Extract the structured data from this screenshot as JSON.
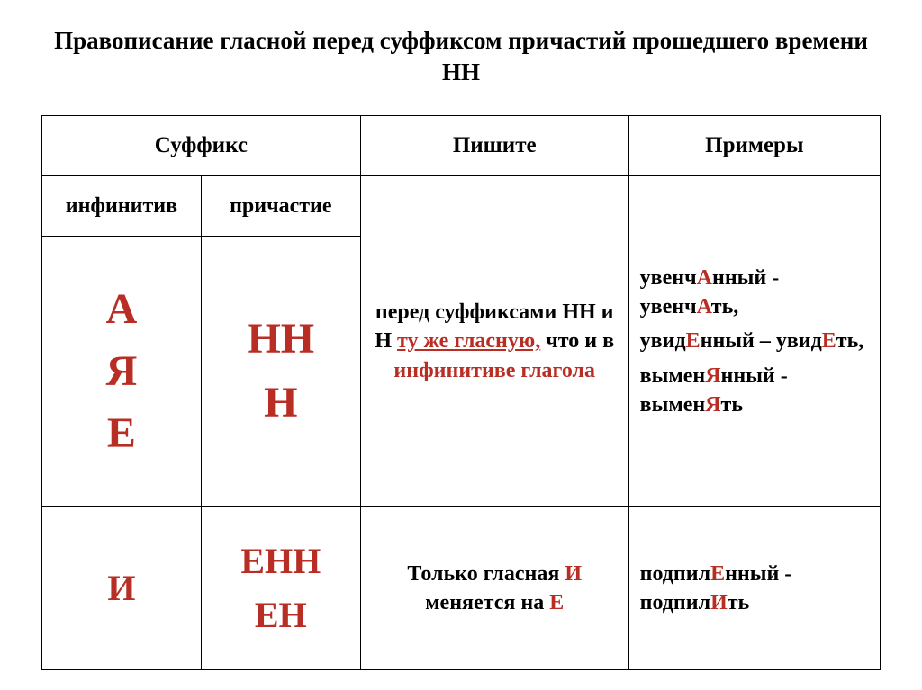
{
  "title": "Правописание гласной перед суффиксом причастий прошедшего времени НН",
  "headers": {
    "suffix": "Суффикс",
    "write": "Пишите",
    "examples": "Примеры",
    "infinitive": "инфинитив",
    "participle": "причастие"
  },
  "row1": {
    "infin_letters": [
      "А",
      "Я",
      "Е"
    ],
    "part_suffixes": [
      "НН",
      "Н"
    ],
    "rule_pre": "перед суффиксами НН и Н ",
    "rule_link": "ту же гласную,",
    "rule_mid": " что и в ",
    "rule_bold": "инфинитиве глагола",
    "ex1_a": "увенч",
    "ex1_hl1": "А",
    "ex1_b": "нный - увенч",
    "ex1_hl2": "А",
    "ex1_c": "ть,",
    "ex2_a": "увид",
    "ex2_hl1": "Е",
    "ex2_b": "нный – увид",
    "ex2_hl2": "Е",
    "ex2_c": "ть,",
    "ex3_a": "вымен",
    "ex3_hl1": "Я",
    "ex3_b": "нный - вымен",
    "ex3_hl2": "Я",
    "ex3_c": "ть"
  },
  "row2": {
    "infin_letters": [
      "И"
    ],
    "part_suffixes": [
      "ЕНН",
      "ЕН"
    ],
    "rule_pre": "Только гласная ",
    "rule_hl1": "И",
    "rule_mid": " меняется на ",
    "rule_hl2": "Е",
    "ex_a": "подпил",
    "ex_hl1": "Е",
    "ex_b": "нный - подпил",
    "ex_hl2": "И",
    "ex_c": "ть"
  },
  "colors": {
    "accent": "#b82e24",
    "text": "#000000",
    "bg": "#ffffff",
    "border": "#000000"
  },
  "fontsizes": {
    "title": 27,
    "header": 25,
    "body": 24,
    "big": 48
  }
}
